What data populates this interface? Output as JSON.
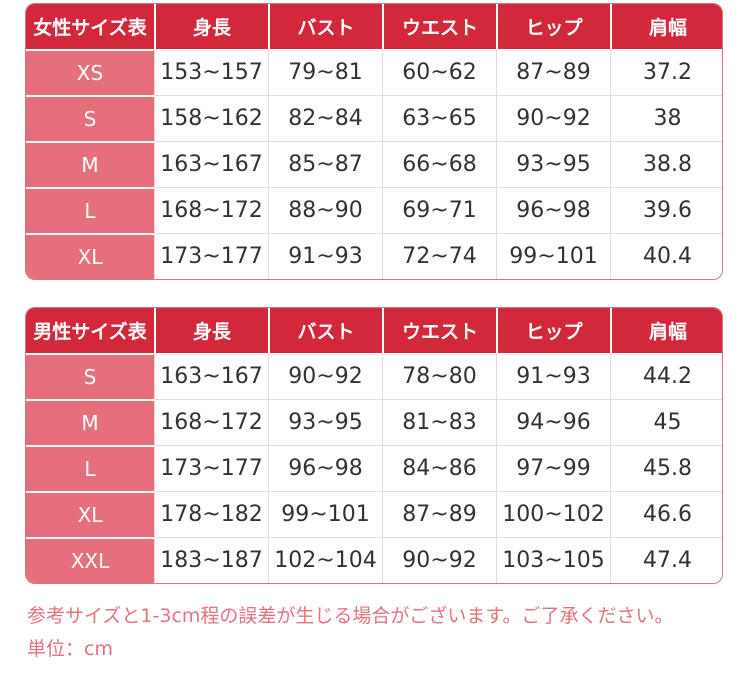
{
  "colors": {
    "header_red": "#d2283c",
    "size_pink": "#e5707b",
    "outer_border": "#d8737f",
    "cell_border": "#f0d8d8",
    "value_text": "#333333",
    "note_text": "#e4737e"
  },
  "chart_data": [
    {
      "type": "table",
      "title": "女性サイズ表",
      "columns": [
        "身長",
        "バスト",
        "ウエスト",
        "ヒップ",
        "肩幅"
      ],
      "rows": [
        {
          "size": "XS",
          "values": [
            "153~157",
            "79~81",
            "60~62",
            "87~89",
            "37.2"
          ]
        },
        {
          "size": "S",
          "values": [
            "158~162",
            "82~84",
            "63~65",
            "90~92",
            "38"
          ]
        },
        {
          "size": "M",
          "values": [
            "163~167",
            "85~87",
            "66~68",
            "93~95",
            "38.8"
          ]
        },
        {
          "size": "L",
          "values": [
            "168~172",
            "88~90",
            "69~71",
            "96~98",
            "39.6"
          ]
        },
        {
          "size": "XL",
          "values": [
            "173~177",
            "91~93",
            "72~74",
            "99~101",
            "40.4"
          ]
        }
      ]
    },
    {
      "type": "table",
      "title": "男性サイズ表",
      "columns": [
        "身長",
        "バスト",
        "ウエスト",
        "ヒップ",
        "肩幅"
      ],
      "rows": [
        {
          "size": "S",
          "values": [
            "163~167",
            "90~92",
            "78~80",
            "91~93",
            "44.2"
          ]
        },
        {
          "size": "M",
          "values": [
            "168~172",
            "93~95",
            "81~83",
            "94~96",
            "45"
          ]
        },
        {
          "size": "L",
          "values": [
            "173~177",
            "96~98",
            "84~86",
            "97~99",
            "45.8"
          ]
        },
        {
          "size": "XL",
          "values": [
            "178~182",
            "99~101",
            "87~89",
            "100~102",
            "46.6"
          ]
        },
        {
          "size": "XXL",
          "values": [
            "183~187",
            "102~104",
            "90~92",
            "103~105",
            "47.4"
          ]
        }
      ]
    }
  ],
  "notes": {
    "line1": "参考サイズと1-3cm程の誤差が生じる場合がございます。ご了承ください。",
    "line2": "単位：cm"
  },
  "units": "cm"
}
